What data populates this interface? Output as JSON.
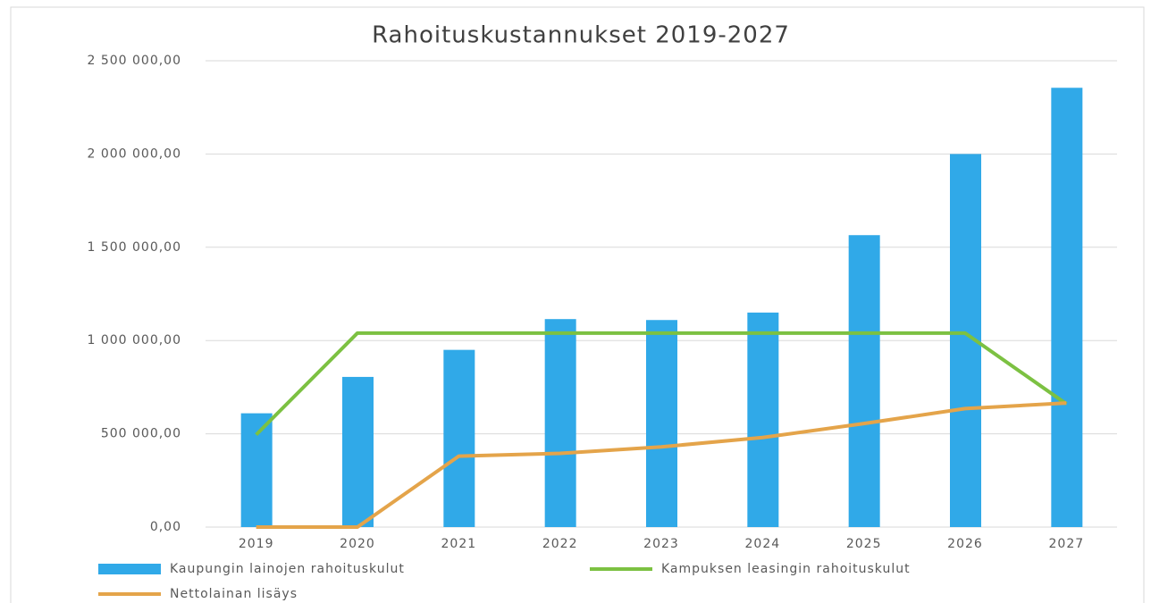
{
  "chart_data": {
    "type": "bar_line",
    "title": "Rahoituskustannukset 2019-2027",
    "categories": [
      "2019",
      "2020",
      "2021",
      "2022",
      "2023",
      "2024",
      "2025",
      "2026",
      "2027"
    ],
    "series": [
      {
        "name": "Kaupungin lainojen rahoituskulut",
        "type": "bar",
        "color": "#30a9e8",
        "values": [
          610000,
          805000,
          950000,
          1115000,
          1110000,
          1150000,
          1565000,
          2000000,
          2355000
        ]
      },
      {
        "name": "Kampuksen leasingin rahoituskulut",
        "type": "line",
        "color": "#7cc142",
        "values": [
          495000,
          1040000,
          1040000,
          1040000,
          1040000,
          1040000,
          1040000,
          1040000,
          660000
        ]
      },
      {
        "name": "Nettolainan lisäys",
        "type": "line",
        "color": "#e4a44a",
        "values": [
          0,
          0,
          380000,
          395000,
          430000,
          480000,
          555000,
          635000,
          665000
        ]
      }
    ],
    "ylim": [
      0,
      2500000
    ],
    "yticks": [
      {
        "value": 0,
        "label": "0,00"
      },
      {
        "value": 500000,
        "label": "500 000,00"
      },
      {
        "value": 1000000,
        "label": "1 000 000,00"
      },
      {
        "value": 1500000,
        "label": "1 500 000,00"
      },
      {
        "value": 2000000,
        "label": "2 000 000,00"
      },
      {
        "value": 2500000,
        "label": "2 500 000,00"
      }
    ],
    "grid": true
  }
}
